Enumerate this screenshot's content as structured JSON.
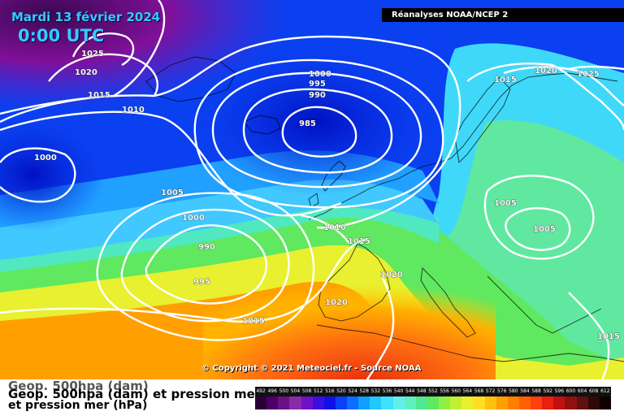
{
  "header": {
    "date": "Mardi 13 février 2024",
    "time": "0:00 UTC",
    "source": "Réanalyses NOAA/NCEP 2"
  },
  "footer": {
    "copyright": "© Copyright © 2021 Meteociel.fr - Source NOAA",
    "legend_line1": "Geop. 500hpa (dam)",
    "legend_line1b": "Geop. 500hpa (dam) et pression mer (hPa)",
    "legend_line2": "et pression mer (hPa)"
  },
  "isobars": [
    {
      "value": "1025",
      "label": "1025"
    },
    {
      "value": "1020",
      "label": "1020"
    },
    {
      "value": "1015",
      "label": "1015"
    },
    {
      "value": "1010",
      "label": "1010"
    },
    {
      "value": "1005",
      "label": "1005"
    },
    {
      "value": "1000",
      "label": "1000"
    },
    {
      "value": "995",
      "label": "995"
    },
    {
      "value": "990",
      "label": "990"
    },
    {
      "value": "985",
      "label": "985"
    }
  ],
  "scale": {
    "values": [
      "492",
      "496",
      "500",
      "504",
      "508",
      "512",
      "516",
      "520",
      "524",
      "528",
      "532",
      "536",
      "540",
      "544",
      "548",
      "552",
      "556",
      "560",
      "564",
      "568",
      "572",
      "576",
      "580",
      "584",
      "588",
      "592",
      "596",
      "600",
      "604",
      "608",
      "612"
    ],
    "colors": [
      "#2a0034",
      "#4b0066",
      "#6a1086",
      "#8a2aa6",
      "#7010c8",
      "#3a10e0",
      "#1010e8",
      "#0a40f8",
      "#0a70ff",
      "#10a0ff",
      "#20c8ff",
      "#40e0ff",
      "#60f0e8",
      "#60f0c0",
      "#50e890",
      "#60e860",
      "#90f040",
      "#c0f030",
      "#e8f030",
      "#ffe020",
      "#ffc010",
      "#ffa000",
      "#ff8000",
      "#ff6000",
      "#ff4010",
      "#e82010",
      "#c01010",
      "#901010",
      "#601010",
      "#300808",
      "#100000"
    ]
  }
}
